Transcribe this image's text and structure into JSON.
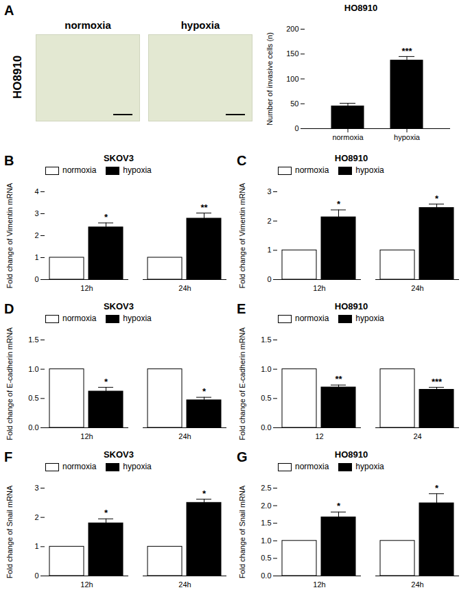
{
  "panel_A_images": {
    "panel": "A",
    "row_label": "HO8910",
    "titles": [
      "normoxia",
      "hypoxia"
    ]
  },
  "chart_data": [
    {
      "panel": "A",
      "type": "bar",
      "title": "HO8910",
      "y_label": "Number of invasive cells (n)",
      "categories": [
        "normoxia",
        "hypoxia"
      ],
      "values": [
        45,
        137
      ],
      "errors": [
        6,
        8
      ],
      "significance": [
        null,
        "***"
      ],
      "color": "#000000",
      "ylim": [
        0,
        200
      ],
      "yticks": [
        0,
        50,
        100,
        150,
        200
      ]
    },
    {
      "panel": "B",
      "type": "bar",
      "title": "SKOV3",
      "y_label": "Fold change of Vimentin mRNA",
      "categories": [
        "12h",
        "24h"
      ],
      "legend": "top-left",
      "series": [
        {
          "name": "normoxia",
          "color": "#ffffff",
          "values": [
            1,
            1
          ]
        },
        {
          "name": "hypoxia",
          "color": "#000000",
          "values": [
            2.38,
            2.78
          ],
          "errors": [
            0.2,
            0.25
          ],
          "significance": [
            "*",
            "**"
          ]
        }
      ],
      "ylim": [
        0,
        4
      ],
      "yticks": [
        0,
        1,
        2,
        3,
        4
      ]
    },
    {
      "panel": "C",
      "type": "bar",
      "title": "HO8910",
      "y_label": "Fold change of Vimentin mRNA",
      "categories": [
        "12h",
        "24h"
      ],
      "legend": "top-left",
      "series": [
        {
          "name": "normoxia",
          "color": "#ffffff",
          "values": [
            1,
            1
          ]
        },
        {
          "name": "hypoxia",
          "color": "#000000",
          "values": [
            2.13,
            2.45
          ],
          "errors": [
            0.25,
            0.13
          ],
          "significance": [
            "*",
            "*"
          ]
        }
      ],
      "ylim": [
        0,
        3
      ],
      "yticks": [
        0,
        1,
        2,
        3
      ]
    },
    {
      "panel": "D",
      "type": "bar",
      "title": "SKOV3",
      "y_label": "Fold change of E-cadherin mRNA",
      "categories": [
        "12h",
        "24h"
      ],
      "legend": "top-left",
      "series": [
        {
          "name": "normoxia",
          "color": "#ffffff",
          "values": [
            1,
            1
          ]
        },
        {
          "name": "hypoxia",
          "color": "#000000",
          "values": [
            0.62,
            0.47
          ],
          "errors": [
            0.07,
            0.05
          ],
          "significance": [
            "*",
            "*"
          ]
        }
      ],
      "ylim": [
        0,
        1.5
      ],
      "yticks": [
        {
          "value": 0,
          "label": "0.0"
        },
        {
          "value": 0.5,
          "label": "0.5"
        },
        {
          "value": 1,
          "label": "1.0"
        },
        {
          "value": 1.5,
          "label": "1.5"
        }
      ]
    },
    {
      "panel": "E",
      "type": "bar",
      "title": "HO8910",
      "y_label": "Fold change of E-cadherin mRNA",
      "categories": [
        "12",
        "24"
      ],
      "legend": "top-left",
      "series": [
        {
          "name": "normoxia",
          "color": "#ffffff",
          "values": [
            1,
            1
          ]
        },
        {
          "name": "hypoxia",
          "color": "#000000",
          "values": [
            0.69,
            0.65
          ],
          "errors": [
            0.04,
            0.04
          ],
          "significance": [
            "**",
            "***"
          ]
        }
      ],
      "ylim": [
        0,
        1.5
      ],
      "yticks": [
        {
          "value": 0,
          "label": "0.0"
        },
        {
          "value": 0.5,
          "label": "0.5"
        },
        {
          "value": 1,
          "label": "1.0"
        },
        {
          "value": 1.5,
          "label": "1.5"
        }
      ]
    },
    {
      "panel": "F",
      "type": "bar",
      "title": "SKOV3",
      "y_label": "Fold change of Snail mRNA",
      "categories": [
        "12h",
        "24h"
      ],
      "legend": "top-left",
      "series": [
        {
          "name": "normoxia",
          "color": "#ffffff",
          "values": [
            1,
            1
          ]
        },
        {
          "name": "hypoxia",
          "color": "#000000",
          "values": [
            1.8,
            2.5
          ],
          "errors": [
            0.15,
            0.12
          ],
          "significance": [
            "*",
            "*"
          ]
        }
      ],
      "ylim": [
        0,
        3
      ],
      "yticks": [
        0,
        1,
        2,
        3
      ]
    },
    {
      "panel": "G",
      "type": "bar",
      "title": "HO8910",
      "y_label": "Fold change of Snail mRNA",
      "categories": [
        "12h",
        "24h"
      ],
      "legend": "top-left",
      "series": [
        {
          "name": "normoxia",
          "color": "#ffffff",
          "values": [
            1,
            1
          ]
        },
        {
          "name": "hypoxia",
          "color": "#000000",
          "values": [
            1.67,
            2.07
          ],
          "errors": [
            0.15,
            0.27
          ],
          "significance": [
            "*",
            "*"
          ]
        }
      ],
      "ylim": [
        0,
        2.5
      ],
      "yticks": [
        {
          "value": 0,
          "label": "0.0"
        },
        {
          "value": 0.5,
          "label": "0.5"
        },
        {
          "value": 1,
          "label": "1.0"
        },
        {
          "value": 1.5,
          "label": "1.5"
        },
        {
          "value": 2,
          "label": "2.0"
        },
        {
          "value": 2.5,
          "label": "2.5"
        }
      ]
    }
  ]
}
